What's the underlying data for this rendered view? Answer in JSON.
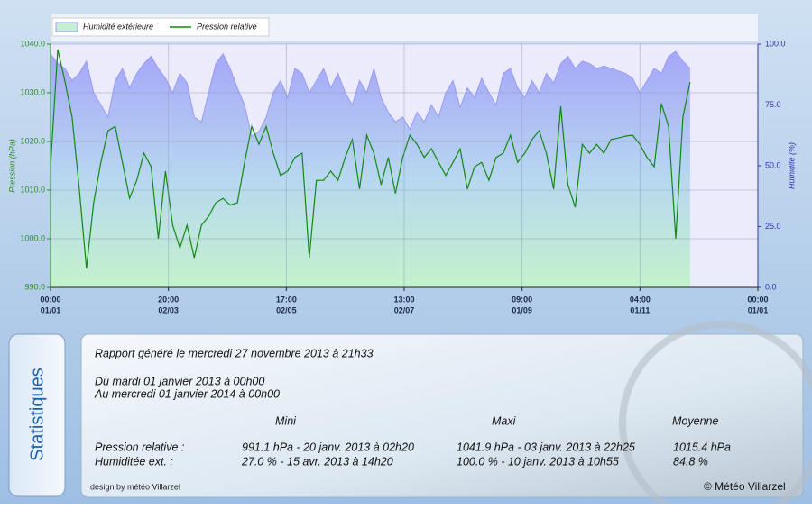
{
  "chart_data": {
    "type": "line",
    "x": [
      0,
      89,
      178,
      267,
      356,
      445,
      534,
      623,
      712,
      801,
      890,
      979,
      1068,
      1157,
      1246,
      1335,
      1424,
      1513,
      1602,
      1691,
      1780,
      1869,
      1958,
      2047,
      2136,
      2225,
      2314,
      2403,
      2492,
      2581,
      2670,
      2759,
      2848,
      2937,
      3026,
      3115,
      3204,
      3293,
      3382,
      3471,
      3560,
      3649,
      3738,
      3827,
      3916,
      4005,
      4094,
      4183,
      4272,
      4361,
      4450,
      4539,
      4628,
      4717,
      4806,
      4895,
      4984,
      5073,
      5162,
      5251,
      5340,
      5429,
      5518,
      5607,
      5696,
      5785,
      5874,
      5963,
      6052,
      6141,
      6230,
      6319,
      6408,
      6497,
      6586,
      6675,
      6764,
      6853,
      6942,
      7031,
      7120,
      7209,
      7298,
      7387,
      7476,
      7565,
      7654,
      7743,
      7832,
      7921
    ],
    "series": [
      {
        "name": "Humidité extérieure",
        "type": "area",
        "axis": "y2",
        "color": "#9a9af5",
        "values": [
          96,
          92,
          90,
          85,
          88,
          93,
          80,
          75,
          70,
          85,
          90,
          82,
          88,
          92,
          95,
          90,
          86,
          80,
          88,
          84,
          70,
          68,
          80,
          92,
          96,
          90,
          82,
          75,
          62,
          64,
          70,
          80,
          85,
          78,
          90,
          88,
          80,
          85,
          90,
          82,
          88,
          80,
          75,
          85,
          80,
          90,
          78,
          72,
          68,
          70,
          65,
          72,
          68,
          75,
          70,
          80,
          85,
          74,
          82,
          78,
          86,
          80,
          75,
          88,
          90,
          82,
          78,
          85,
          80,
          88,
          84,
          92,
          95,
          90,
          93,
          92,
          90,
          91,
          90,
          89,
          88,
          86,
          80,
          85,
          90,
          88,
          95,
          97,
          93,
          90
        ]
      },
      {
        "name": "Pression relative",
        "type": "line",
        "axis": "y",
        "color": "#118811",
        "values": [
          1014.8,
          1038.9,
          1032.4,
          1025.0,
          1010.2,
          993.9,
          1007.4,
          1015.7,
          1022.2,
          1023.1,
          1015.7,
          1008.3,
          1012.0,
          1017.6,
          1014.8,
          1000.0,
          1013.9,
          1002.8,
          998.1,
          1002.8,
          996.1,
          1002.8,
          1004.6,
          1007.4,
          1008.3,
          1006.9,
          1007.4,
          1015.7,
          1023.1,
          1019.4,
          1023.1,
          1017.6,
          1013.0,
          1013.9,
          1016.7,
          1017.6,
          996.1,
          1012.0,
          1012.0,
          1013.9,
          1012.0,
          1016.7,
          1020.4,
          1010.2,
          1021.3,
          1017.6,
          1011.1,
          1016.7,
          1009.3,
          1016.7,
          1021.3,
          1019.4,
          1016.7,
          1018.5,
          1015.7,
          1013.0,
          1015.7,
          1018.5,
          1010.2,
          1014.8,
          1015.7,
          1012.0,
          1016.7,
          1017.6,
          1021.3,
          1015.7,
          1017.6,
          1020.4,
          1022.2,
          1017.6,
          1010.2,
          1027.2,
          1011.1,
          1006.5,
          1019.4,
          1017.6,
          1019.4,
          1017.6,
          1020.4,
          1020.7,
          1021.1,
          1021.3,
          1019.4,
          1016.7,
          1014.8,
          1027.8,
          1023.1,
          1000.0,
          1025.0,
          1032.2
        ]
      }
    ],
    "xlim": [
      0,
      8760
    ],
    "xticks": [
      {
        "value": 0,
        "label": [
          "00:00",
          "01/01"
        ]
      },
      {
        "value": 1460,
        "label": [
          "20:00",
          "02/03"
        ]
      },
      {
        "value": 2920,
        "label": [
          "17:00",
          "02/05"
        ]
      },
      {
        "value": 4380,
        "label": [
          "13:00",
          "02/07"
        ]
      },
      {
        "value": 5840,
        "label": [
          "09:00",
          "01/09"
        ]
      },
      {
        "value": 7300,
        "label": [
          "04:00",
          "01/11"
        ]
      },
      {
        "value": 8760,
        "label": [
          "00:00",
          "01/01"
        ]
      }
    ],
    "ylim": [
      990,
      1040
    ],
    "yticks": [
      {
        "value": 990,
        "label": "990.0"
      },
      {
        "value": 1000,
        "label": "1000.0"
      },
      {
        "value": 1010,
        "label": "1010.0"
      },
      {
        "value": 1020,
        "label": "1020.0"
      },
      {
        "value": 1030,
        "label": "1030.0"
      },
      {
        "value": 1040,
        "label": "1040.0"
      }
    ],
    "y2lim": [
      0,
      100
    ],
    "y2ticks": [
      {
        "value": 0,
        "label": "0.0"
      },
      {
        "value": 25,
        "label": "25.0"
      },
      {
        "value": 50,
        "label": "50.0"
      },
      {
        "value": 75,
        "label": "75.0"
      },
      {
        "value": 100,
        "label": "100.0"
      }
    ],
    "ylabel": "Pression (hPa)",
    "y2label": "Humidité (%)",
    "grid": true,
    "legend": "top-left"
  },
  "stats": {
    "tab": "Statistiques",
    "report": "Rapport généré le mercredi 27 novembre 2013 à 21h33",
    "from": "Du mardi 01 janvier 2013 à 00h00",
    "to": "Au mercredi 01 janvier 2014 à 00h00",
    "headers": [
      "Mini",
      "Maxi",
      "Moyenne"
    ],
    "rows": [
      [
        "Pression relative :",
        "991.1 hPa - 20 janv. 2013 à 02h20",
        "1041.9 hPa - 03 janv. 2013 à 22h25",
        "1015.4 hPa"
      ],
      [
        "Humiditée ext. :",
        "27.0 % - 15 avr. 2013 à 14h20",
        "100.0 % - 10 janv. 2013 à 10h55",
        "84.8 %"
      ]
    ]
  },
  "footer": {
    "design": "design by météo Villarzel",
    "copyright": "© Météo Villarzel"
  }
}
